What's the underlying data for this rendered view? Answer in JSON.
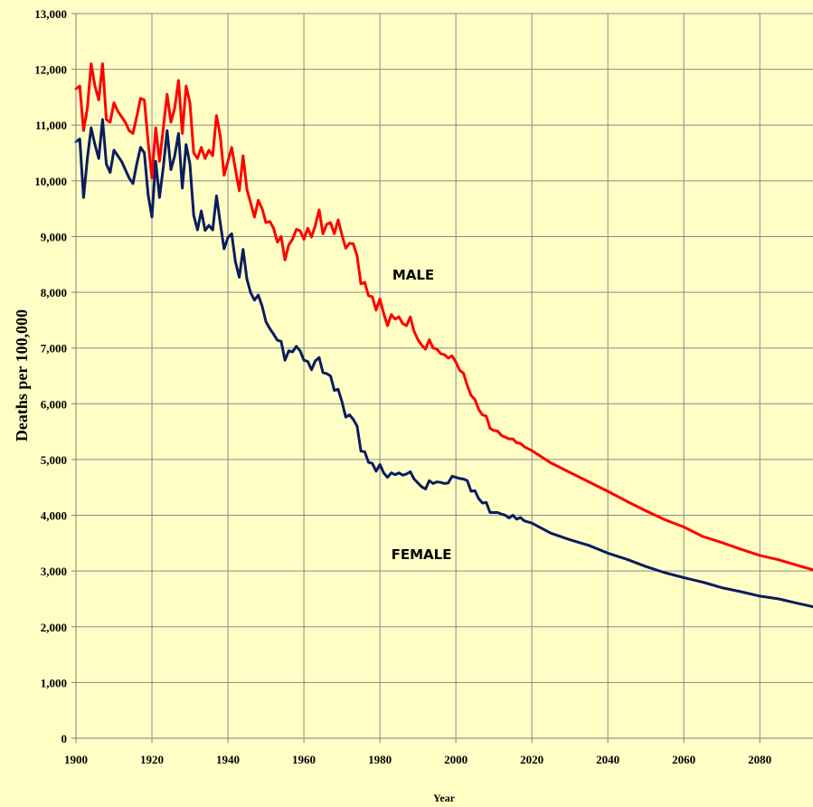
{
  "chart_data": {
    "type": "line",
    "xlabel": "Year",
    "ylabel": "Deaths per 100,000",
    "xlim": [
      1900,
      2094
    ],
    "ylim": [
      0,
      13000
    ],
    "x_ticks": [
      "1900",
      "1920",
      "1940",
      "1960",
      "1980",
      "2000",
      "2020",
      "2040",
      "2060",
      "2080"
    ],
    "y_ticks": [
      "0",
      "1,000",
      "2,000",
      "3,000",
      "4,000",
      "5,000",
      "6,000",
      "7,000",
      "8,000",
      "9,000",
      "10,000",
      "11,000",
      "12,000",
      "13,000"
    ],
    "grid": true,
    "series": [
      {
        "name": "MALE",
        "color": "#FF0000",
        "points": [
          [
            1900,
            11650
          ],
          [
            1901,
            11700
          ],
          [
            1902,
            10900
          ],
          [
            1903,
            11300
          ],
          [
            1904,
            12100
          ],
          [
            1905,
            11700
          ],
          [
            1906,
            11450
          ],
          [
            1907,
            12100
          ],
          [
            1908,
            11100
          ],
          [
            1909,
            11050
          ],
          [
            1910,
            11400
          ],
          [
            1911,
            11250
          ],
          [
            1912,
            11150
          ],
          [
            1913,
            11050
          ],
          [
            1914,
            10900
          ],
          [
            1915,
            10850
          ],
          [
            1916,
            11150
          ],
          [
            1917,
            11480
          ],
          [
            1918,
            11450
          ],
          [
            1919,
            10700
          ],
          [
            1920,
            10050
          ],
          [
            1921,
            10950
          ],
          [
            1922,
            10350
          ],
          [
            1923,
            10950
          ],
          [
            1924,
            11550
          ],
          [
            1925,
            11050
          ],
          [
            1926,
            11300
          ],
          [
            1927,
            11800
          ],
          [
            1928,
            10850
          ],
          [
            1929,
            11700
          ],
          [
            1930,
            11400
          ],
          [
            1931,
            10500
          ],
          [
            1932,
            10400
          ],
          [
            1933,
            10600
          ],
          [
            1934,
            10400
          ],
          [
            1935,
            10550
          ],
          [
            1936,
            10450
          ],
          [
            1937,
            11170
          ],
          [
            1938,
            10800
          ],
          [
            1939,
            10100
          ],
          [
            1940,
            10350
          ],
          [
            1941,
            10600
          ],
          [
            1942,
            10200
          ],
          [
            1943,
            9820
          ],
          [
            1944,
            10450
          ],
          [
            1945,
            9850
          ],
          [
            1946,
            9600
          ],
          [
            1947,
            9350
          ],
          [
            1948,
            9650
          ],
          [
            1949,
            9500
          ],
          [
            1950,
            9250
          ],
          [
            1951,
            9270
          ],
          [
            1952,
            9150
          ],
          [
            1953,
            8900
          ],
          [
            1954,
            9000
          ],
          [
            1955,
            8580
          ],
          [
            1956,
            8850
          ],
          [
            1957,
            8950
          ],
          [
            1958,
            9130
          ],
          [
            1959,
            9100
          ],
          [
            1960,
            8950
          ],
          [
            1961,
            9150
          ],
          [
            1962,
            8990
          ],
          [
            1963,
            9200
          ],
          [
            1964,
            9480
          ],
          [
            1965,
            9050
          ],
          [
            1966,
            9220
          ],
          [
            1967,
            9250
          ],
          [
            1968,
            9050
          ],
          [
            1969,
            9300
          ],
          [
            1970,
            9030
          ],
          [
            1971,
            8790
          ],
          [
            1972,
            8880
          ],
          [
            1973,
            8870
          ],
          [
            1974,
            8650
          ],
          [
            1975,
            8150
          ],
          [
            1976,
            8180
          ],
          [
            1977,
            7940
          ],
          [
            1978,
            7920
          ],
          [
            1979,
            7680
          ],
          [
            1980,
            7880
          ],
          [
            1981,
            7620
          ],
          [
            1982,
            7400
          ],
          [
            1983,
            7600
          ],
          [
            1984,
            7520
          ],
          [
            1985,
            7560
          ],
          [
            1986,
            7440
          ],
          [
            1987,
            7400
          ],
          [
            1988,
            7560
          ],
          [
            1989,
            7300
          ],
          [
            1990,
            7150
          ],
          [
            1991,
            7050
          ],
          [
            1992,
            6980
          ],
          [
            1993,
            7150
          ],
          [
            1994,
            7000
          ],
          [
            1995,
            6980
          ],
          [
            1996,
            6900
          ],
          [
            1997,
            6880
          ],
          [
            1998,
            6820
          ],
          [
            1999,
            6860
          ],
          [
            2000,
            6750
          ],
          [
            2001,
            6600
          ],
          [
            2002,
            6550
          ],
          [
            2003,
            6330
          ],
          [
            2004,
            6150
          ],
          [
            2005,
            6080
          ],
          [
            2006,
            5900
          ],
          [
            2007,
            5800
          ],
          [
            2008,
            5780
          ],
          [
            2009,
            5560
          ],
          [
            2010,
            5520
          ],
          [
            2011,
            5510
          ],
          [
            2012,
            5430
          ],
          [
            2013,
            5400
          ],
          [
            2014,
            5370
          ],
          [
            2015,
            5370
          ],
          [
            2016,
            5300
          ],
          [
            2017,
            5290
          ],
          [
            2018,
            5230
          ],
          [
            2020,
            5160
          ],
          [
            2025,
            4940
          ],
          [
            2030,
            4770
          ],
          [
            2035,
            4600
          ],
          [
            2040,
            4430
          ],
          [
            2045,
            4250
          ],
          [
            2050,
            4080
          ],
          [
            2055,
            3920
          ],
          [
            2060,
            3790
          ],
          [
            2065,
            3620
          ],
          [
            2070,
            3510
          ],
          [
            2075,
            3390
          ],
          [
            2080,
            3280
          ],
          [
            2085,
            3200
          ],
          [
            2090,
            3100
          ],
          [
            2094,
            3020
          ]
        ]
      },
      {
        "name": "FEMALE",
        "color": "#0A1C5E",
        "points": [
          [
            1900,
            10700
          ],
          [
            1901,
            10750
          ],
          [
            1902,
            9700
          ],
          [
            1903,
            10400
          ],
          [
            1904,
            10950
          ],
          [
            1905,
            10650
          ],
          [
            1906,
            10400
          ],
          [
            1907,
            11100
          ],
          [
            1908,
            10300
          ],
          [
            1909,
            10150
          ],
          [
            1910,
            10550
          ],
          [
            1911,
            10450
          ],
          [
            1912,
            10350
          ],
          [
            1913,
            10200
          ],
          [
            1914,
            10050
          ],
          [
            1915,
            9950
          ],
          [
            1916,
            10300
          ],
          [
            1917,
            10600
          ],
          [
            1918,
            10500
          ],
          [
            1919,
            9750
          ],
          [
            1920,
            9350
          ],
          [
            1921,
            10350
          ],
          [
            1922,
            9700
          ],
          [
            1923,
            10250
          ],
          [
            1924,
            10900
          ],
          [
            1925,
            10200
          ],
          [
            1926,
            10450
          ],
          [
            1927,
            10850
          ],
          [
            1928,
            9870
          ],
          [
            1929,
            10650
          ],
          [
            1930,
            10300
          ],
          [
            1931,
            9380
          ],
          [
            1932,
            9120
          ],
          [
            1933,
            9460
          ],
          [
            1934,
            9110
          ],
          [
            1935,
            9200
          ],
          [
            1936,
            9120
          ],
          [
            1937,
            9730
          ],
          [
            1938,
            9240
          ],
          [
            1939,
            8780
          ],
          [
            1940,
            8980
          ],
          [
            1941,
            9050
          ],
          [
            1942,
            8540
          ],
          [
            1943,
            8270
          ],
          [
            1944,
            8770
          ],
          [
            1945,
            8240
          ],
          [
            1946,
            7990
          ],
          [
            1947,
            7860
          ],
          [
            1948,
            7950
          ],
          [
            1949,
            7750
          ],
          [
            1950,
            7470
          ],
          [
            1951,
            7350
          ],
          [
            1952,
            7250
          ],
          [
            1953,
            7140
          ],
          [
            1954,
            7120
          ],
          [
            1955,
            6780
          ],
          [
            1956,
            6950
          ],
          [
            1957,
            6930
          ],
          [
            1958,
            7030
          ],
          [
            1959,
            6950
          ],
          [
            1960,
            6780
          ],
          [
            1961,
            6760
          ],
          [
            1962,
            6610
          ],
          [
            1963,
            6770
          ],
          [
            1964,
            6830
          ],
          [
            1965,
            6560
          ],
          [
            1966,
            6540
          ],
          [
            1967,
            6500
          ],
          [
            1968,
            6240
          ],
          [
            1969,
            6260
          ],
          [
            1970,
            6040
          ],
          [
            1971,
            5760
          ],
          [
            1972,
            5800
          ],
          [
            1973,
            5720
          ],
          [
            1974,
            5600
          ],
          [
            1975,
            5150
          ],
          [
            1976,
            5140
          ],
          [
            1977,
            4950
          ],
          [
            1978,
            4930
          ],
          [
            1979,
            4790
          ],
          [
            1980,
            4910
          ],
          [
            1981,
            4760
          ],
          [
            1982,
            4680
          ],
          [
            1983,
            4760
          ],
          [
            1984,
            4730
          ],
          [
            1985,
            4760
          ],
          [
            1986,
            4720
          ],
          [
            1987,
            4740
          ],
          [
            1988,
            4780
          ],
          [
            1989,
            4650
          ],
          [
            1990,
            4580
          ],
          [
            1991,
            4510
          ],
          [
            1992,
            4470
          ],
          [
            1993,
            4620
          ],
          [
            1994,
            4570
          ],
          [
            1995,
            4600
          ],
          [
            1996,
            4590
          ],
          [
            1997,
            4570
          ],
          [
            1998,
            4580
          ],
          [
            1999,
            4700
          ],
          [
            2000,
            4680
          ],
          [
            2001,
            4660
          ],
          [
            2002,
            4650
          ],
          [
            2003,
            4620
          ],
          [
            2004,
            4430
          ],
          [
            2005,
            4440
          ],
          [
            2006,
            4300
          ],
          [
            2007,
            4220
          ],
          [
            2008,
            4230
          ],
          [
            2009,
            4050
          ],
          [
            2010,
            4050
          ],
          [
            2011,
            4050
          ],
          [
            2012,
            4020
          ],
          [
            2013,
            4000
          ],
          [
            2014,
            3950
          ],
          [
            2015,
            4000
          ],
          [
            2016,
            3930
          ],
          [
            2017,
            3960
          ],
          [
            2018,
            3900
          ],
          [
            2020,
            3860
          ],
          [
            2025,
            3680
          ],
          [
            2030,
            3560
          ],
          [
            2035,
            3460
          ],
          [
            2040,
            3320
          ],
          [
            2045,
            3210
          ],
          [
            2050,
            3080
          ],
          [
            2055,
            2970
          ],
          [
            2060,
            2880
          ],
          [
            2065,
            2800
          ],
          [
            2070,
            2700
          ],
          [
            2075,
            2630
          ],
          [
            2080,
            2550
          ],
          [
            2085,
            2500
          ],
          [
            2090,
            2420
          ],
          [
            2094,
            2360
          ]
        ]
      }
    ]
  }
}
